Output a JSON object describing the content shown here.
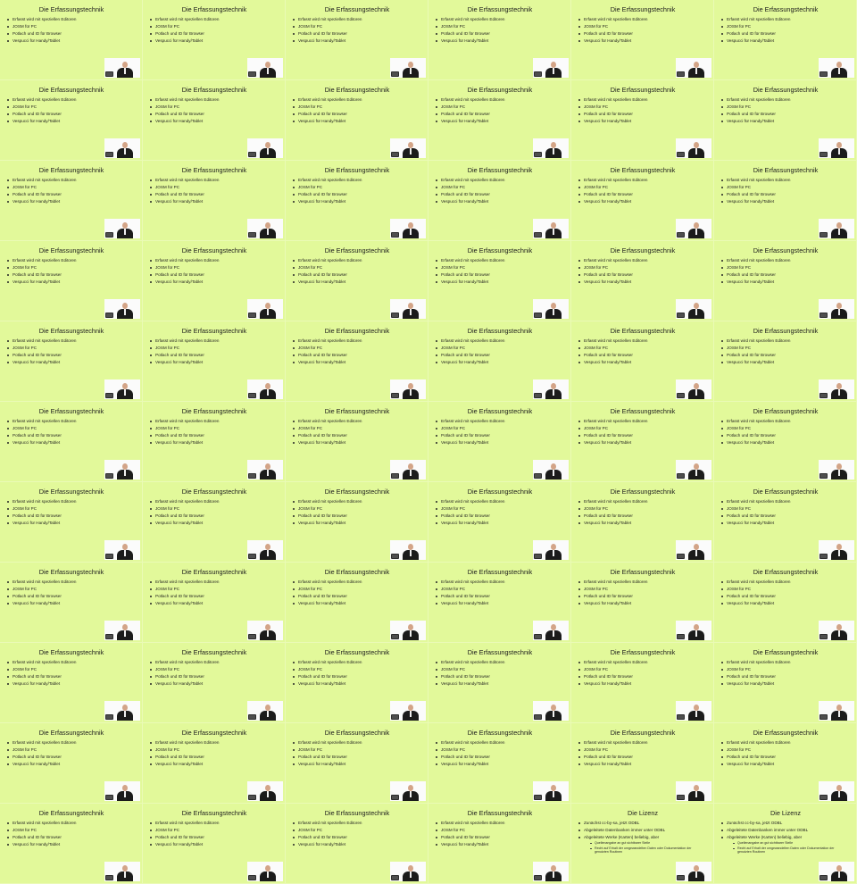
{
  "slides": [
    {
      "title": "Die Erfassungstechnik",
      "bullets": [
        "Erfasst wird mit speziellen Editoren",
        "JOSM für PC",
        "Potlach und ID für Browser",
        "Vespucci für Handy/Tablet"
      ]
    },
    {
      "title": "Die Lizenz",
      "bullets": [
        "Zunächst cc-by-sa, jetzt ODBL",
        "Abgeleitete Datenbanken immer unter ODBL",
        "Abgeleitete Werke (Karten) beliebig, aber"
      ],
      "sub_bullets": [
        "Quellenangabe an gut sichtbarer Stelle",
        "Recht auf Erhalt der umgewandelten Daten oder Dokumentation der genutzten Routinen"
      ]
    }
  ],
  "grid": {
    "columns": 6,
    "rows": 11,
    "sequence": [
      0,
      0,
      0,
      0,
      0,
      0,
      0,
      0,
      0,
      0,
      0,
      0,
      0,
      0,
      0,
      0,
      0,
      0,
      0,
      0,
      0,
      0,
      0,
      0,
      0,
      0,
      0,
      0,
      0,
      0,
      0,
      0,
      0,
      0,
      0,
      0,
      0,
      0,
      0,
      0,
      0,
      0,
      0,
      0,
      0,
      0,
      0,
      0,
      0,
      0,
      0,
      0,
      0,
      0,
      0,
      0,
      0,
      0,
      0,
      0,
      0,
      0,
      0,
      0,
      1,
      1
    ]
  },
  "icons": {
    "video": "presenter-video-thumbnail"
  },
  "colors": {
    "slide_background": "#e2f99a",
    "text": "#1c1c1c",
    "video_background": "#fbfbfb"
  }
}
